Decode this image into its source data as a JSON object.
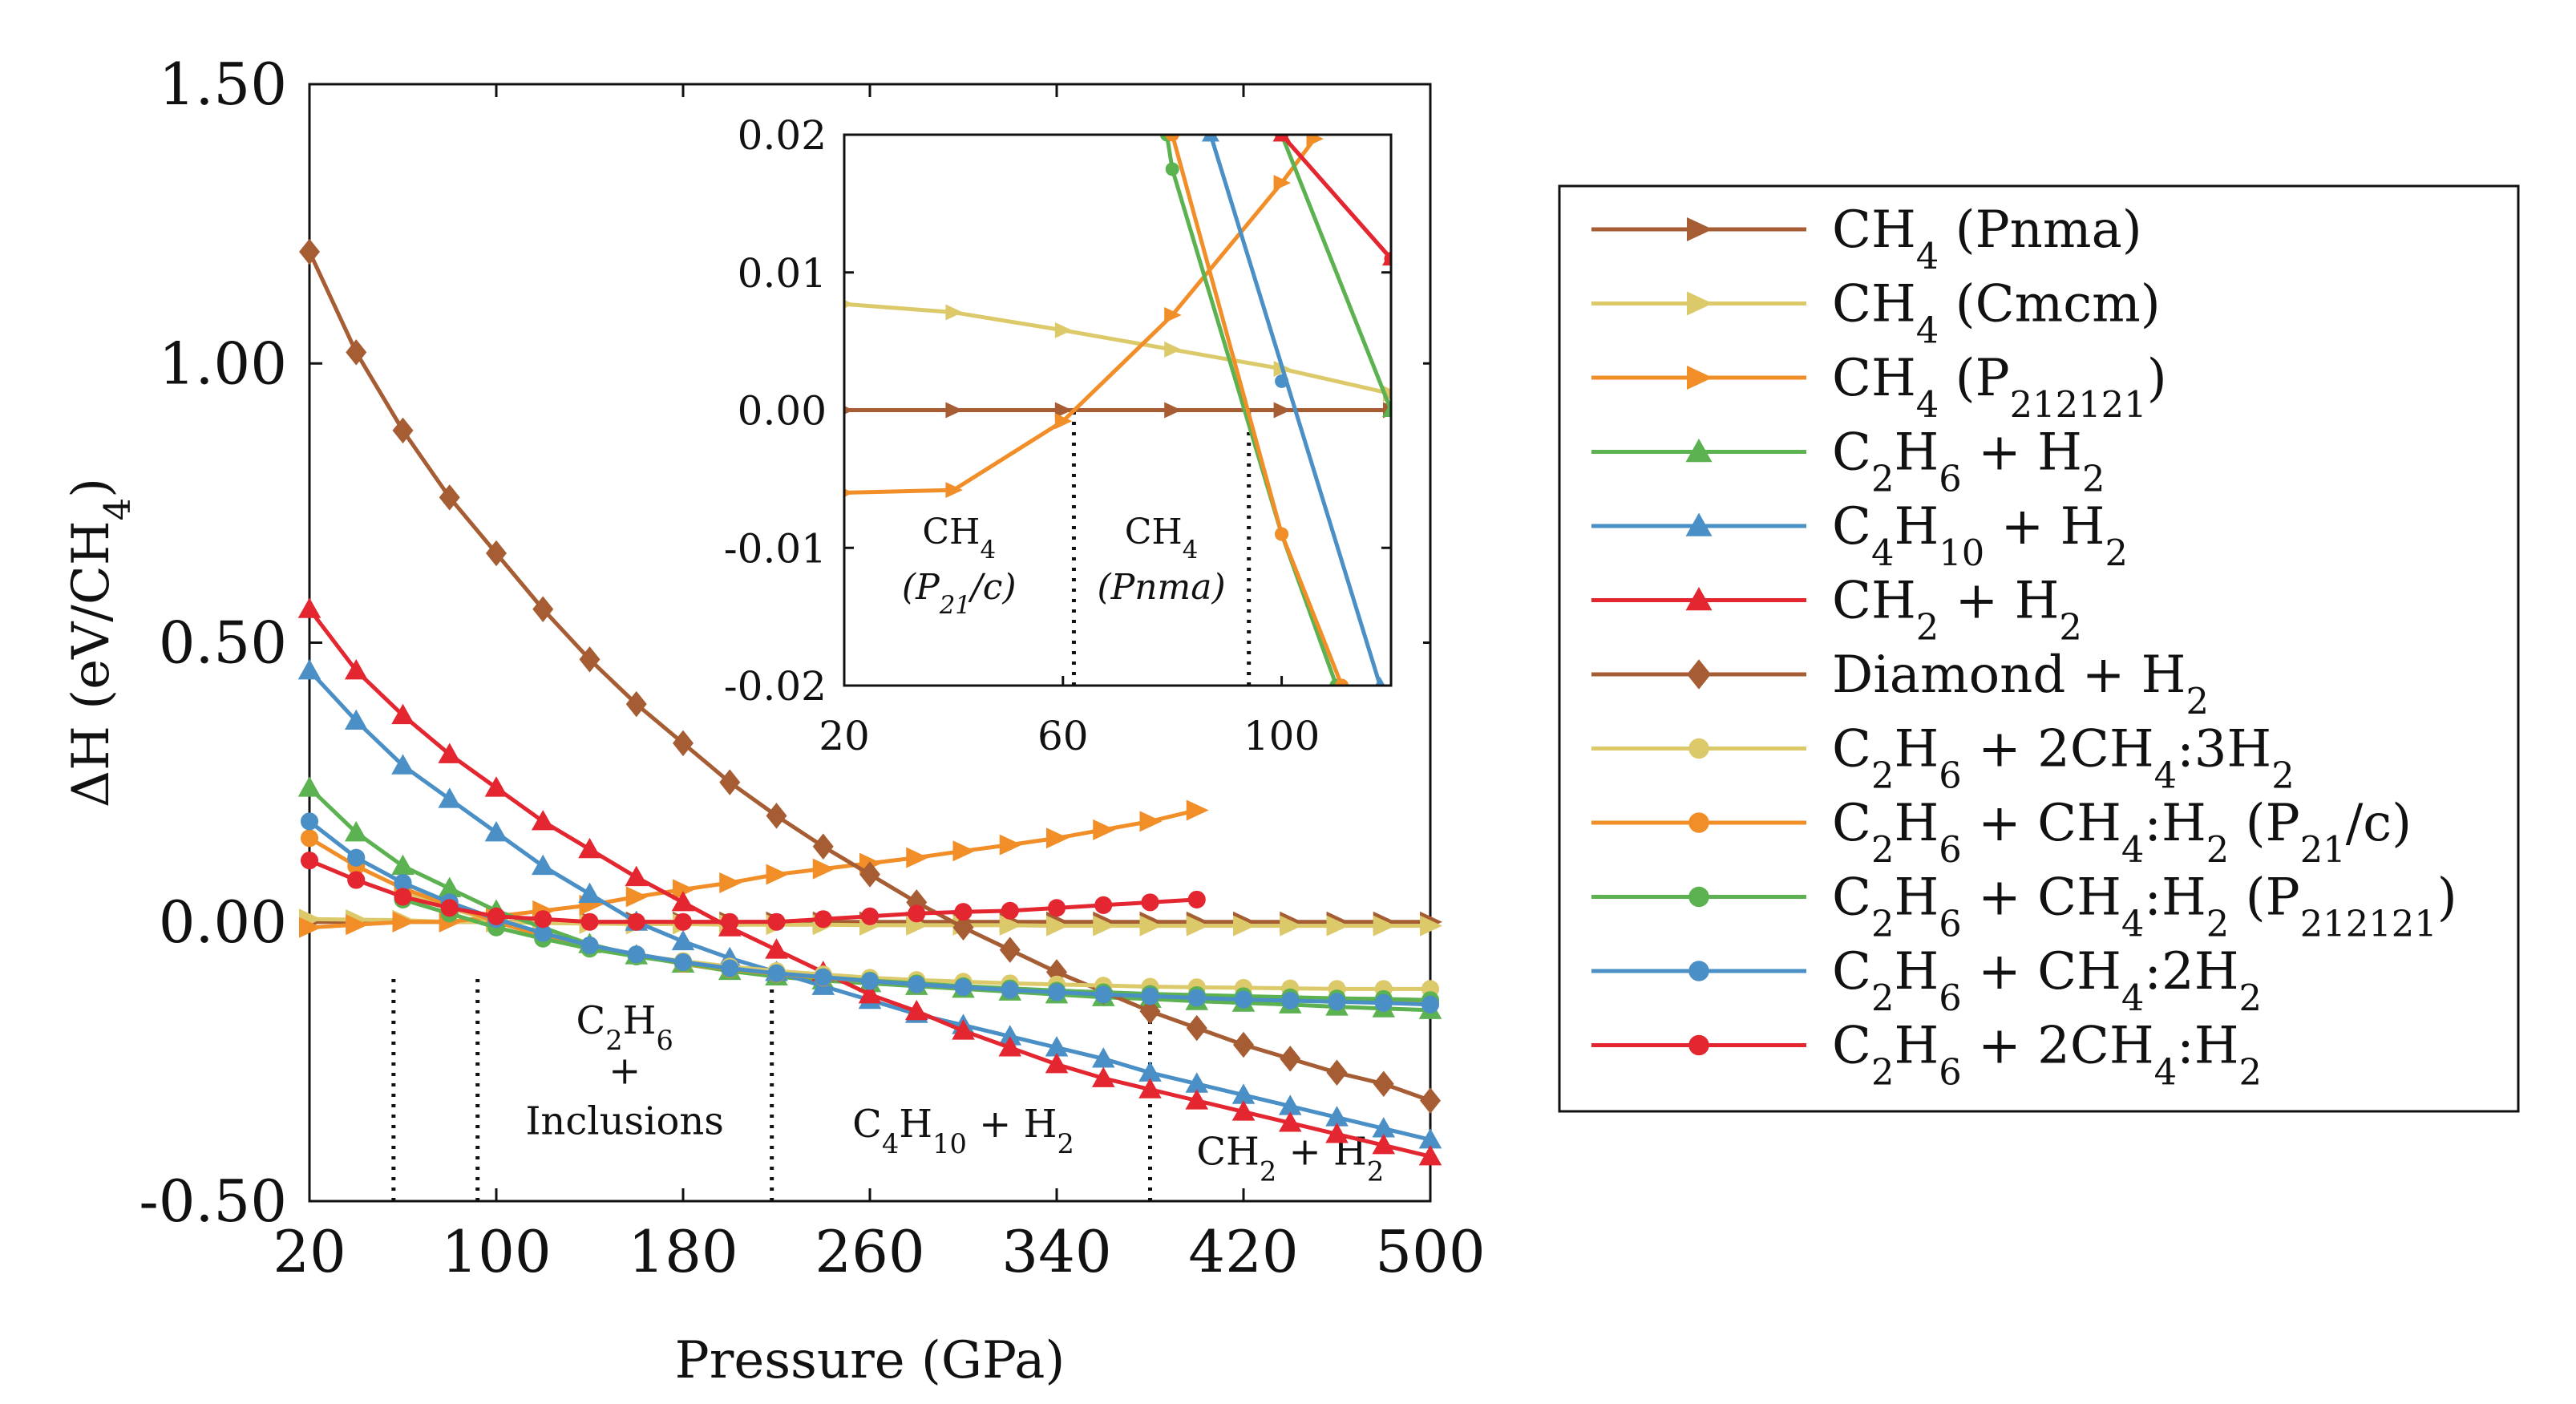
{
  "chart_data": {
    "type": "line",
    "xlabel": "Pressure (GPa)",
    "ylabel": "ΔH (eV/CH4)",
    "xlim": [
      20,
      500
    ],
    "ylim": [
      -0.5,
      1.5
    ],
    "xticks": [
      "20",
      "100",
      "180",
      "260",
      "340",
      "420",
      "500"
    ],
    "yticks": [
      "1.50",
      "1.00",
      "0.50",
      "0.00",
      "-0.50"
    ],
    "colors": {
      "brown": "#a65d34",
      "yellow": "#dcc96a",
      "orange": "#f28e28",
      "green": "#5cb150",
      "blue": "#4a8fc5",
      "red": "#e3262f"
    },
    "series": [
      {
        "name": "CH4 (Pnma)",
        "color": "brown",
        "marker": "triangle-right",
        "x": [
          20,
          40,
          60,
          80,
          100,
          120,
          140,
          160,
          180,
          200,
          220,
          240,
          260,
          280,
          300,
          320,
          340,
          360,
          380,
          400,
          420,
          440,
          460,
          480,
          500
        ],
        "y": [
          0,
          0,
          0,
          0,
          0,
          0,
          0,
          0,
          0,
          0,
          0,
          0,
          0,
          0,
          0,
          0,
          0,
          0,
          0,
          0,
          0,
          0,
          0,
          0,
          0
        ]
      },
      {
        "name": "CH4 (Cmcm)",
        "color": "yellow",
        "marker": "triangle-right",
        "x": [
          20,
          40,
          60,
          80,
          100,
          120,
          140,
          160,
          180,
          200,
          220,
          240,
          260,
          280,
          300,
          320,
          340,
          360,
          380,
          400,
          420,
          440,
          460,
          480,
          500
        ],
        "y": [
          0.005,
          0.004,
          0.003,
          0.0,
          0.0,
          -0.002,
          -0.003,
          -0.004,
          -0.004,
          -0.005,
          -0.005,
          -0.005,
          -0.006,
          -0.006,
          -0.006,
          -0.006,
          -0.007,
          -0.007,
          -0.007,
          -0.007,
          -0.007,
          -0.007,
          -0.007,
          -0.007,
          -0.007
        ]
      },
      {
        "name": "CH4 (P212121)",
        "color": "orange",
        "marker": "triangle-right",
        "x": [
          20,
          40,
          60,
          80,
          100,
          120,
          140,
          160,
          180,
          200,
          220,
          240,
          260,
          280,
          300,
          320,
          340,
          360,
          380,
          400
        ],
        "y": [
          -0.01,
          -0.005,
          0.0,
          0.0,
          0.01,
          0.02,
          0.03,
          0.045,
          0.058,
          0.07,
          0.085,
          0.095,
          0.105,
          0.115,
          0.127,
          0.138,
          0.15,
          0.165,
          0.18,
          0.2
        ]
      },
      {
        "name": "C2H6 + H2",
        "color": "green",
        "marker": "triangle-up",
        "x": [
          20,
          40,
          60,
          80,
          100,
          120,
          140,
          160,
          180,
          200,
          220,
          240,
          260,
          280,
          300,
          320,
          340,
          360,
          380,
          400,
          420,
          440,
          460,
          480,
          500
        ],
        "y": [
          0.24,
          0.16,
          0.1,
          0.06,
          0.02,
          -0.01,
          -0.04,
          -0.06,
          -0.075,
          -0.088,
          -0.098,
          -0.105,
          -0.11,
          -0.115,
          -0.12,
          -0.125,
          -0.13,
          -0.135,
          -0.138,
          -0.142,
          -0.145,
          -0.148,
          -0.152,
          -0.155,
          -0.158
        ]
      },
      {
        "name": "C4H10 + H2",
        "color": "blue",
        "marker": "triangle-up",
        "x": [
          20,
          40,
          60,
          80,
          100,
          120,
          140,
          160,
          180,
          200,
          220,
          240,
          260,
          280,
          300,
          320,
          340,
          360,
          380,
          400,
          420,
          440,
          460,
          480,
          500
        ],
        "y": [
          0.45,
          0.36,
          0.28,
          0.22,
          0.16,
          0.1,
          0.05,
          0.0,
          -0.035,
          -0.065,
          -0.09,
          -0.115,
          -0.14,
          -0.165,
          -0.185,
          -0.205,
          -0.225,
          -0.245,
          -0.27,
          -0.29,
          -0.31,
          -0.33,
          -0.35,
          -0.37,
          -0.39
        ]
      },
      {
        "name": "CH2 + H2",
        "color": "red",
        "marker": "triangle-up",
        "x": [
          20,
          40,
          60,
          80,
          100,
          120,
          140,
          160,
          180,
          200,
          220,
          240,
          260,
          280,
          300,
          320,
          340,
          360,
          380,
          400,
          420,
          440,
          460,
          480,
          500
        ],
        "y": [
          0.56,
          0.45,
          0.37,
          0.3,
          0.24,
          0.18,
          0.13,
          0.08,
          0.035,
          -0.01,
          -0.05,
          -0.09,
          -0.13,
          -0.16,
          -0.195,
          -0.225,
          -0.255,
          -0.28,
          -0.3,
          -0.32,
          -0.34,
          -0.36,
          -0.38,
          -0.4,
          -0.42
        ]
      },
      {
        "name": "Diamond + H2",
        "color": "brown",
        "marker": "diamond",
        "x": [
          20,
          40,
          60,
          80,
          100,
          120,
          140,
          160,
          180,
          200,
          220,
          240,
          260,
          280,
          300,
          320,
          340,
          360,
          380,
          400,
          420,
          440,
          460,
          480,
          500
        ],
        "y": [
          1.2,
          1.02,
          0.88,
          0.76,
          0.66,
          0.56,
          0.47,
          0.39,
          0.32,
          0.25,
          0.19,
          0.135,
          0.085,
          0.035,
          -0.01,
          -0.05,
          -0.09,
          -0.125,
          -0.16,
          -0.19,
          -0.22,
          -0.245,
          -0.27,
          -0.29,
          -0.32
        ]
      },
      {
        "name": "C2H6 + 2CH4:3H2",
        "color": "yellow",
        "marker": "circle",
        "x": [
          60,
          80,
          100,
          120,
          140,
          160,
          180,
          200,
          220,
          240,
          260,
          280,
          300,
          320,
          340,
          360,
          380,
          400,
          420,
          440,
          460,
          480,
          500
        ],
        "y": [
          0.055,
          0.025,
          0.0,
          -0.025,
          -0.045,
          -0.06,
          -0.07,
          -0.08,
          -0.088,
          -0.094,
          -0.1,
          -0.104,
          -0.107,
          -0.11,
          -0.112,
          -0.114,
          -0.116,
          -0.117,
          -0.118,
          -0.119,
          -0.12,
          -0.12,
          -0.12
        ]
      },
      {
        "name": "C2H6 + CH4:H2 (P21/c)",
        "color": "orange",
        "marker": "circle",
        "x": [
          20,
          40,
          60,
          80,
          100,
          120,
          140,
          160,
          180,
          200,
          220,
          240,
          260,
          280,
          300,
          320,
          340,
          360,
          380,
          400,
          420,
          440,
          460,
          480,
          500
        ],
        "y": [
          0.15,
          0.1,
          0.06,
          0.03,
          0.0,
          -0.025,
          -0.045,
          -0.06,
          -0.075,
          -0.085,
          -0.093,
          -0.1,
          -0.106,
          -0.112,
          -0.117,
          -0.121,
          -0.125,
          -0.128,
          -0.131,
          -0.134,
          -0.136,
          -0.138,
          -0.14,
          -0.142,
          -0.145
        ]
      },
      {
        "name": "C2H6 + CH4:H2 (P212121)",
        "color": "green",
        "marker": "circle",
        "x": [
          60,
          80,
          100,
          120,
          140,
          160,
          180,
          200,
          220,
          240,
          260,
          280,
          300,
          320,
          340,
          360,
          380,
          400,
          420,
          440,
          460,
          480,
          500
        ],
        "y": [
          0.04,
          0.015,
          -0.01,
          -0.03,
          -0.048,
          -0.062,
          -0.074,
          -0.084,
          -0.092,
          -0.099,
          -0.105,
          -0.11,
          -0.115,
          -0.119,
          -0.123,
          -0.126,
          -0.129,
          -0.131,
          -0.133,
          -0.135,
          -0.137,
          -0.138,
          -0.14
        ]
      },
      {
        "name": "C2H6 + CH4:2H2",
        "color": "blue",
        "marker": "circle",
        "x": [
          20,
          40,
          60,
          80,
          100,
          120,
          140,
          160,
          180,
          200,
          220,
          240,
          260,
          280,
          300,
          320,
          340,
          360,
          380,
          400,
          420,
          440,
          460,
          480,
          500
        ],
        "y": [
          0.18,
          0.115,
          0.07,
          0.035,
          0.005,
          -0.02,
          -0.042,
          -0.058,
          -0.072,
          -0.083,
          -0.092,
          -0.099,
          -0.106,
          -0.112,
          -0.117,
          -0.122,
          -0.126,
          -0.13,
          -0.133,
          -0.136,
          -0.139,
          -0.141,
          -0.143,
          -0.145,
          -0.148
        ]
      },
      {
        "name": "C2H6 + 2CH4:H2",
        "color": "red",
        "marker": "circle",
        "x": [
          20,
          40,
          60,
          80,
          100,
          120,
          140,
          160,
          180,
          200,
          220,
          240,
          260,
          280,
          300,
          320,
          340,
          360,
          380,
          400
        ],
        "y": [
          0.11,
          0.075,
          0.045,
          0.025,
          0.01,
          0.005,
          0.0,
          0.0,
          0.0,
          0.0,
          0.0,
          0.005,
          0.01,
          0.015,
          0.018,
          0.02,
          0.025,
          0.03,
          0.035,
          0.04
        ]
      }
    ],
    "phase_boundaries_gpa": [
      56,
      92,
      218,
      380
    ],
    "phase_regions": [
      {
        "lines": [
          "C2H6",
          "+",
          "Inclusions"
        ],
        "x": 155
      },
      {
        "lines": [
          "C4H10 + H2"
        ],
        "x": 300
      },
      {
        "lines": [
          "CH2 + H2"
        ],
        "x": 440
      }
    ],
    "inset": {
      "xlim": [
        20,
        120
      ],
      "ylim": [
        -0.02,
        0.02
      ],
      "xticks": [
        "20",
        "60",
        "100"
      ],
      "yticks": [
        "0.02",
        "0.01",
        "0.00",
        "-0.01",
        "-0.02"
      ],
      "boundaries_gpa": [
        62,
        94
      ],
      "regions": [
        {
          "lines": [
            "CH4",
            "(P21/c)"
          ],
          "x": 41
        },
        {
          "lines": [
            "CH4",
            "(Pnma)"
          ],
          "x": 78
        }
      ],
      "series": [
        {
          "color": "brown",
          "marker": "triangle-right",
          "x": [
            20,
            40,
            60,
            80,
            100,
            120
          ],
          "y": [
            0,
            0,
            0,
            0,
            0,
            0
          ]
        },
        {
          "color": "yellow",
          "marker": "triangle-right",
          "x": [
            20,
            40,
            60,
            80,
            100,
            120
          ],
          "y": [
            0.0077,
            0.0071,
            0.0058,
            0.0044,
            0.003,
            0.0012
          ]
        },
        {
          "color": "orange",
          "marker": "triangle-right",
          "x": [
            20,
            40,
            60,
            80,
            100,
            106
          ],
          "y": [
            -0.006,
            -0.0058,
            -0.0008,
            0.0069,
            0.0165,
            0.0197
          ]
        },
        {
          "color": "green",
          "marker": "triangle-up",
          "x": [
            100,
            120
          ],
          "y": [
            0.02,
            0.0
          ]
        },
        {
          "color": "blue",
          "marker": "triangle-up",
          "x": [
            87,
            118
          ],
          "y": [
            0.02,
            -0.02
          ]
        },
        {
          "color": "red",
          "marker": "triangle-up",
          "x": [
            100,
            120
          ],
          "y": [
            0.02,
            0.011
          ]
        },
        {
          "color": "green",
          "marker": "circle",
          "x": [
            79,
            80,
            100,
            110
          ],
          "y": [
            0.02,
            0.0175,
            -0.009,
            -0.02
          ]
        },
        {
          "color": "orange",
          "marker": "circle",
          "x": [
            80,
            100,
            111
          ],
          "y": [
            0.02,
            -0.009,
            -0.02
          ]
        },
        {
          "color": "blue",
          "marker": "circle",
          "x": [
            100
          ],
          "y": [
            0.0021
          ]
        },
        {
          "color": "red",
          "marker": "circle",
          "x": [
            100,
            120
          ],
          "y": [
            0.02,
            0.011
          ]
        }
      ]
    },
    "legend": {
      "position": "right",
      "entries": [
        {
          "label": "CH4 (Pnma)",
          "color": "brown",
          "marker": "triangle-right"
        },
        {
          "label": "CH4 (Cmcm)",
          "color": "yellow",
          "marker": "triangle-right"
        },
        {
          "label": "CH4 (P212121)",
          "color": "orange",
          "marker": "triangle-right"
        },
        {
          "label": "C2H6 + H2",
          "color": "green",
          "marker": "triangle-up"
        },
        {
          "label": "C4H10 + H2",
          "color": "blue",
          "marker": "triangle-up"
        },
        {
          "label": "CH2 + H2",
          "color": "red",
          "marker": "triangle-up"
        },
        {
          "label": "Diamond + H2",
          "color": "brown",
          "marker": "diamond"
        },
        {
          "label": "C2H6 + 2CH4:3H2",
          "color": "yellow",
          "marker": "circle"
        },
        {
          "label": "C2H6 + CH4:H2 (P21/c)",
          "color": "orange",
          "marker": "circle"
        },
        {
          "label": "C2H6 + CH4:H2 (P212121)",
          "color": "green",
          "marker": "circle"
        },
        {
          "label": "C2H6 + CH4:2H2",
          "color": "blue",
          "marker": "circle"
        },
        {
          "label": "C2H6 + 2CH4:H2",
          "color": "red",
          "marker": "circle"
        }
      ]
    }
  }
}
